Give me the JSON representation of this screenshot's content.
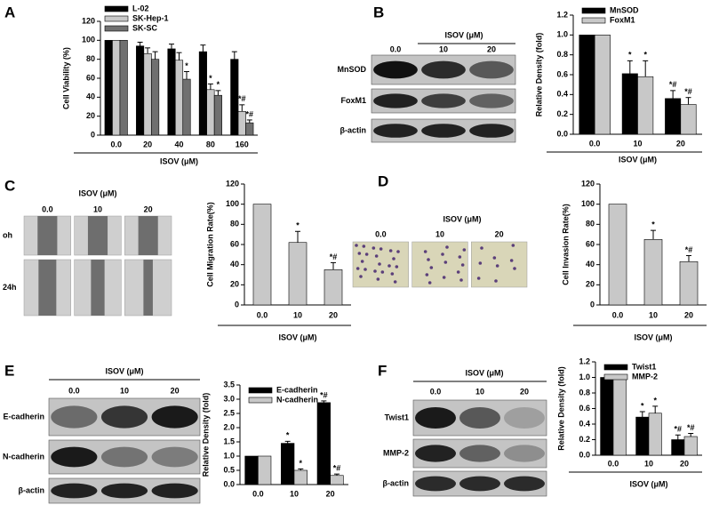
{
  "chart_data": [
    {
      "type": "bar",
      "xlabel": "ISOV (μM)",
      "ylabel": "Cell Viability (%)",
      "categories": [
        "0.0",
        "20",
        "40",
        "80",
        "160"
      ],
      "ylim": [
        0,
        120
      ],
      "yticks": [
        0,
        20,
        40,
        60,
        80,
        100,
        120
      ],
      "legend": "upper left",
      "series": [
        {
          "name": "L-02",
          "color": "#000000",
          "values": [
            100,
            94,
            91,
            88,
            80
          ],
          "errors": [
            0,
            4,
            5,
            7,
            8
          ],
          "markers": [
            null,
            null,
            null,
            null,
            null
          ]
        },
        {
          "name": "SK-Hep-1",
          "color": "#c8c8c8",
          "values": [
            100,
            86,
            79,
            48,
            25
          ],
          "errors": [
            0,
            6,
            8,
            6,
            7
          ],
          "markers": [
            null,
            null,
            null,
            "*",
            "*#"
          ]
        },
        {
          "name": "SK-SC",
          "color": "#707070",
          "values": [
            100,
            80,
            59,
            42,
            13
          ],
          "errors": [
            0,
            8,
            8,
            5,
            3
          ],
          "markers": [
            null,
            null,
            "*",
            "*",
            "*#"
          ]
        }
      ]
    },
    {
      "type": "bar",
      "xlabel": "ISOV (μM)",
      "ylabel": "Relative Density (fold)",
      "categories": [
        "0.0",
        "10",
        "20"
      ],
      "ylim": [
        0,
        1.2
      ],
      "yticks": [
        {
          "value": 0,
          "label": "0.0"
        },
        0.2,
        0.4,
        0.6,
        0.8,
        {
          "value": 1,
          "label": "1.0"
        },
        1.2
      ],
      "legend": "upper right",
      "series": [
        {
          "name": "MnSOD",
          "color": "#000000",
          "values": [
            1.0,
            0.61,
            0.36
          ],
          "errors": [
            0,
            0.13,
            0.08
          ],
          "markers": [
            null,
            "*",
            "*#"
          ]
        },
        {
          "name": "FoxM1",
          "color": "#c8c8c8",
          "values": [
            1.0,
            0.58,
            0.3
          ],
          "errors": [
            0,
            0.16,
            0.07
          ],
          "markers": [
            null,
            "*",
            "*#"
          ]
        }
      ]
    },
    {
      "type": "bar",
      "xlabel": "ISOV (μM)",
      "ylabel": "Cell Migration Rate(%)",
      "categories": [
        "0.0",
        "10",
        "20"
      ],
      "ylim": [
        0,
        120
      ],
      "yticks": [
        0,
        20,
        40,
        60,
        80,
        100,
        120
      ],
      "color": "#c8c8c8",
      "values": [
        100,
        62,
        35
      ],
      "errors": [
        0,
        11,
        7
      ],
      "markers": [
        null,
        "*",
        "*#"
      ]
    },
    {
      "type": "bar",
      "xlabel": "ISOV (μM)",
      "ylabel": "Cell Invasion Rate(%)",
      "categories": [
        "0.0",
        "10",
        "20"
      ],
      "ylim": [
        0,
        120
      ],
      "yticks": [
        0,
        20,
        40,
        60,
        80,
        100,
        120
      ],
      "color": "#c8c8c8",
      "values": [
        100,
        65,
        43
      ],
      "errors": [
        0,
        9,
        6
      ],
      "markers": [
        null,
        "*",
        "*#"
      ]
    },
    {
      "type": "bar",
      "ylabel": "Relative Density (fold)",
      "categories": [
        "0.0",
        "10",
        "20"
      ],
      "ylim": [
        0,
        3.5
      ],
      "yticks": [
        {
          "value": 0,
          "label": "0.0"
        },
        0.5,
        {
          "value": 1,
          "label": "1.0"
        },
        1.5,
        {
          "value": 2,
          "label": "2.0"
        },
        2.5,
        {
          "value": 3,
          "label": "3.0"
        },
        3.5
      ],
      "legend": "upper right",
      "series": [
        {
          "name": "E-cadherin",
          "color": "#000000",
          "values": [
            1.0,
            1.45,
            2.88
          ],
          "errors": [
            0,
            0.07,
            0.06
          ],
          "markers": [
            null,
            "*",
            "*#"
          ]
        },
        {
          "name": "N-cadherin",
          "color": "#c8c8c8",
          "values": [
            1.0,
            0.5,
            0.32
          ],
          "errors": [
            0,
            0.05,
            0.05
          ],
          "markers": [
            null,
            "*",
            "*#"
          ]
        }
      ]
    },
    {
      "type": "bar",
      "xlabel": "ISOV (μM)",
      "ylabel": "Relative Density (fold)",
      "categories": [
        "0.0",
        "10",
        "20"
      ],
      "ylim": [
        0,
        1.2
      ],
      "yticks": [
        {
          "value": 0,
          "label": "0.0"
        },
        0.2,
        0.4,
        0.6,
        0.8,
        {
          "value": 1,
          "label": "1.0"
        },
        1.2
      ],
      "legend": "upper right",
      "series": [
        {
          "name": "Twist1",
          "color": "#000000",
          "values": [
            1.0,
            0.49,
            0.2
          ],
          "errors": [
            0,
            0.07,
            0.06
          ],
          "markers": [
            null,
            "*",
            "*#"
          ]
        },
        {
          "name": "MMP-2",
          "color": "#c8c8c8",
          "values": [
            1.0,
            0.54,
            0.24
          ],
          "errors": [
            0,
            0.09,
            0.04
          ],
          "markers": [
            null,
            "*",
            "*#"
          ]
        }
      ]
    }
  ],
  "letters": [
    "A",
    "B",
    "C",
    "D",
    "E",
    "F"
  ],
  "images": [
    {
      "condition": "ISOV (μM)",
      "lanes": [
        "0.0",
        "10",
        "20"
      ],
      "rows": [
        "MnSOD",
        "FoxM1",
        "β-actin"
      ]
    },
    {
      "condition": "ISOV (μM)",
      "lanes": [
        "0.0",
        "10",
        "20"
      ],
      "rows": [
        "oh",
        "24h"
      ]
    },
    {
      "condition": "ISOV (μM)",
      "lanes": [
        "0.0",
        "10",
        "20"
      ]
    },
    {
      "condition": "ISOV (μM)",
      "lanes": [
        "0.0",
        "10",
        "20"
      ],
      "rows": [
        "E-cadherin",
        "N-cadherin",
        "β-actin"
      ]
    },
    {
      "condition": "ISOV (μM)",
      "lanes": [
        "0.0",
        "10",
        "20"
      ],
      "rows": [
        "Twist1",
        "MMP-2",
        "β-actin"
      ]
    }
  ]
}
